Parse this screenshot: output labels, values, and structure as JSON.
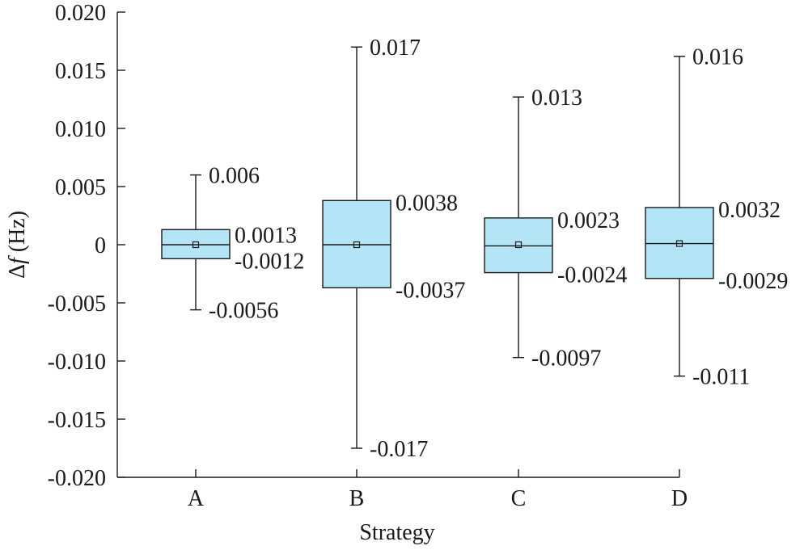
{
  "chart_data": {
    "type": "box",
    "xlabel": "Strategy",
    "ylabel_symbol": "Δ",
    "ylabel_var": "f",
    "ylabel_unit": " (Hz)",
    "ylim": [
      -0.02,
      0.02
    ],
    "yticks": [
      {
        "value": 0.02,
        "label": "0.020"
      },
      {
        "value": 0.015,
        "label": "0.015"
      },
      {
        "value": 0.01,
        "label": "0.010"
      },
      {
        "value": 0.005,
        "label": "0.005"
      },
      {
        "value": 0,
        "label": "0"
      },
      {
        "value": -0.005,
        "label": "-0.005"
      },
      {
        "value": -0.01,
        "label": "-0.010"
      },
      {
        "value": -0.015,
        "label": "-0.015"
      },
      {
        "value": -0.02,
        "label": "-0.020"
      }
    ],
    "categories": [
      "A",
      "B",
      "C",
      "D"
    ],
    "boxes": [
      {
        "category": "A",
        "max": 0.006,
        "q3": 0.0013,
        "median": 0.0,
        "mean": 0.0,
        "q1": -0.0012,
        "min": -0.0056,
        "labels": {
          "max": "0.006",
          "q3": "0.0013",
          "q1": "-0.0012",
          "min": "-0.0056"
        }
      },
      {
        "category": "B",
        "max": 0.017,
        "q3": 0.0038,
        "median": 0.0,
        "mean": 0.0,
        "q1": -0.0037,
        "min": -0.0175,
        "labels": {
          "max": "0.017",
          "q3": "0.0038",
          "q1": "-0.0037",
          "min": "-0.017"
        }
      },
      {
        "category": "C",
        "max": 0.0127,
        "q3": 0.0023,
        "median": -0.0001,
        "mean": 0.0,
        "q1": -0.0024,
        "min": -0.0097,
        "labels": {
          "max": "0.013",
          "q3": "0.0023",
          "q1": "-0.0024",
          "min": "-0.0097"
        }
      },
      {
        "category": "D",
        "max": 0.0162,
        "q3": 0.0032,
        "median": 0.0001,
        "mean": 0.0001,
        "q1": -0.0029,
        "min": -0.0113,
        "labels": {
          "max": "0.016",
          "q3": "0.0032",
          "q1": "-0.0029",
          "min": "-0.011"
        }
      }
    ],
    "box_color": "#b3e5f7",
    "grid": false,
    "legend": "none"
  }
}
